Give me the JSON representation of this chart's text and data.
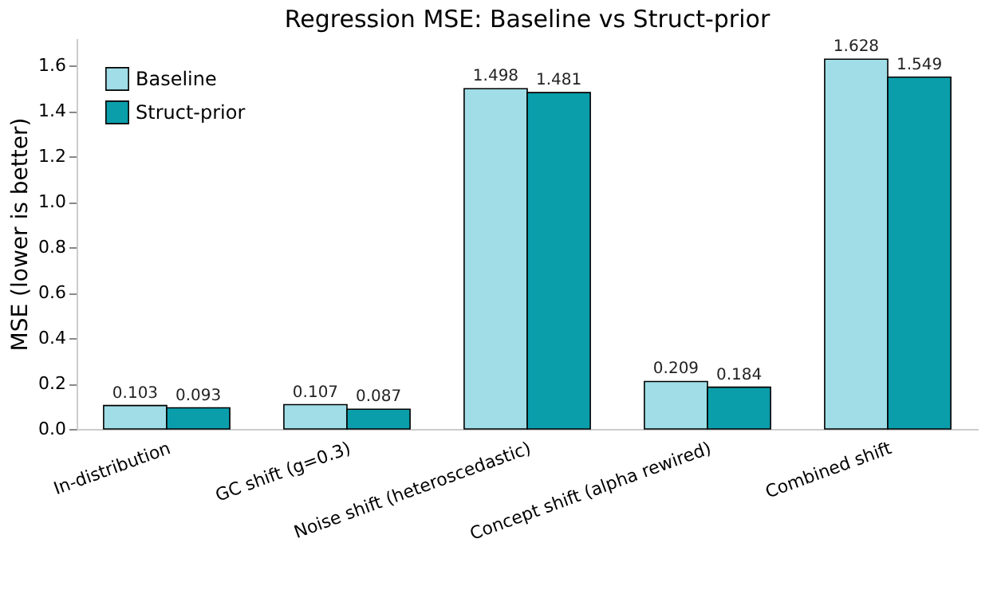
{
  "chart_data": {
    "type": "bar",
    "title": "Regression MSE: Baseline vs Struct-prior",
    "ylabel": "MSE (lower is better)",
    "categories": [
      "In-distribution",
      "GC shift (g=0.3)",
      "Noise shift (heteroscedastic)",
      "Concept shift (alpha rewired)",
      "Combined shift"
    ],
    "series": [
      {
        "name": "Baseline",
        "color": "#a0dde6",
        "values": [
          0.103,
          0.107,
          1.498,
          0.209,
          1.628
        ]
      },
      {
        "name": "Struct-prior",
        "color": "#0a9eab",
        "values": [
          0.093,
          0.087,
          1.481,
          0.184,
          1.549
        ]
      }
    ],
    "ylim": [
      0,
      1.72
    ],
    "yticks": [
      {
        "value": 0,
        "label": "0.0"
      },
      0.2,
      0.4,
      0.6,
      0.8,
      {
        "value": 1,
        "label": "1.0"
      },
      1.2,
      1.4,
      1.6
    ],
    "grid": false,
    "legend": "top left",
    "data_labels": true
  }
}
